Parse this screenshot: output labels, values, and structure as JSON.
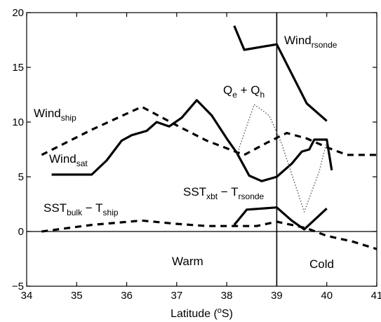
{
  "chart_data": {
    "type": "line",
    "title": "",
    "xlabel": "Latitude (°S)",
    "ylabel": "",
    "xlim": [
      34,
      41
    ],
    "ylim": [
      -5,
      20
    ],
    "xticks": [
      34,
      35,
      36,
      37,
      38,
      39,
      40,
      41
    ],
    "yticks": [
      -5,
      0,
      5,
      10,
      15,
      20
    ],
    "grid": false,
    "reference_lines": [
      {
        "orientation": "horizontal",
        "value": 0
      },
      {
        "orientation": "vertical",
        "value": 39
      }
    ],
    "series": [
      {
        "name": "Wind_rsonde",
        "style": "solid",
        "x": [
          38.15,
          38.35,
          39.0,
          39.6,
          40.0
        ],
        "y": [
          18.8,
          16.6,
          17.1,
          11.7,
          10.1
        ]
      },
      {
        "name": "Wind_sat",
        "style": "solid",
        "x": [
          34.5,
          35.3,
          35.6,
          35.9,
          36.1,
          36.4,
          36.6,
          36.85,
          37.1,
          37.4,
          37.7,
          38.0,
          38.2,
          38.45,
          38.7,
          39.0,
          39.3,
          39.5,
          39.65,
          39.75,
          39.9,
          40.0,
          40.1
        ],
        "y": [
          5.2,
          5.2,
          6.5,
          8.3,
          8.8,
          9.2,
          10.0,
          9.6,
          10.4,
          12.0,
          10.6,
          8.5,
          7.2,
          5.1,
          4.6,
          5.0,
          6.2,
          7.3,
          7.5,
          8.4,
          8.4,
          8.4,
          5.6
        ]
      },
      {
        "name": "Wind_ship",
        "style": "dashed",
        "x": [
          34.3,
          35.3,
          36.3,
          37.0,
          37.6,
          38.0,
          38.35,
          38.8,
          39.2,
          39.6,
          40.0,
          40.4,
          41.0
        ],
        "y": [
          7.0,
          9.3,
          11.4,
          9.7,
          8.3,
          7.6,
          7.0,
          8.1,
          9.0,
          8.5,
          7.7,
          7.0,
          7.0
        ]
      },
      {
        "name": "Qe + Qh",
        "style": "dotted",
        "x": [
          38.2,
          38.55,
          38.85,
          39.1,
          39.55,
          39.85,
          40.0
        ],
        "y": [
          7.0,
          11.6,
          10.6,
          8.0,
          1.8,
          5.5,
          8.2
        ]
      },
      {
        "name": "SST_xbt − T_rsonde",
        "style": "solid",
        "x": [
          38.15,
          38.4,
          39.0,
          39.3,
          39.55,
          40.0
        ],
        "y": [
          0.6,
          2.0,
          2.2,
          1.0,
          0.2,
          2.1
        ]
      },
      {
        "name": "SST_bulk − T_ship",
        "style": "dashed",
        "x": [
          34.3,
          35.3,
          36.3,
          37.0,
          37.6,
          38.2,
          38.6,
          39.0,
          39.3,
          39.6,
          40.0,
          40.5,
          41.0
        ],
        "y": [
          0.0,
          0.6,
          1.0,
          0.7,
          0.5,
          0.5,
          0.5,
          0.9,
          0.6,
          0.3,
          -0.4,
          -0.9,
          -1.6
        ]
      }
    ],
    "labels": [
      {
        "id": "wind_rsonde",
        "text": "Wind",
        "sub": "rsonde"
      },
      {
        "id": "qe_qh",
        "parts": [
          {
            "t": "Q"
          },
          {
            "t": "e",
            "sub": true
          },
          {
            "t": " + Q"
          },
          {
            "t": "h",
            "sub": true
          }
        ]
      },
      {
        "id": "wind_ship",
        "text": "Wind",
        "sub": "ship"
      },
      {
        "id": "wind_sat",
        "text": "Wind",
        "sub": "sat"
      },
      {
        "id": "sst_xbt",
        "parts": [
          {
            "t": "SST"
          },
          {
            "t": "xbt",
            "sub": true
          },
          {
            "t": " − T"
          },
          {
            "t": "rsonde",
            "sub": true
          }
        ]
      },
      {
        "id": "sst_bulk",
        "parts": [
          {
            "t": "SST"
          },
          {
            "t": "bulk",
            "sub": true
          },
          {
            "t": " − T"
          },
          {
            "t": "ship",
            "sub": true
          }
        ]
      },
      {
        "id": "warm",
        "text": "Warm"
      },
      {
        "id": "cold",
        "text": "Cold"
      }
    ],
    "xlabel_parts": [
      {
        "t": "Latitude ("
      },
      {
        "t": "o",
        "sup": true
      },
      {
        "t": "S)"
      }
    ]
  }
}
